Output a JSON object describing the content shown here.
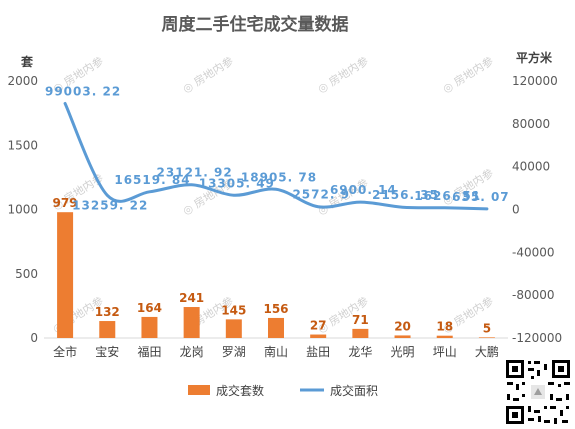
{
  "chart_data": {
    "type": "bar+line",
    "title": "周度二手住宅成交量数据",
    "left_axis_unit": "套",
    "right_axis_unit": "平方米",
    "categories": [
      "全市",
      "宝安",
      "福田",
      "龙岗",
      "罗湖",
      "南山",
      "盐田",
      "龙华",
      "光明",
      "坪山",
      "大鹏"
    ],
    "series": [
      {
        "name": "成交套数",
        "type": "bar",
        "axis": "left",
        "color": "#ed7d31",
        "values": [
          979,
          132,
          164,
          241,
          145,
          156,
          27,
          71,
          20,
          18,
          5
        ],
        "labels": [
          "979",
          "132",
          "164",
          "241",
          "145",
          "156",
          "27",
          "71",
          "20",
          "18",
          "5"
        ]
      },
      {
        "name": "成交面积",
        "type": "line",
        "axis": "right",
        "color": "#5b9bd5",
        "values": [
          99003.22,
          13259.22,
          16519.84,
          23121.92,
          13305.49,
          18905.78,
          2572.9,
          6900.14,
          2156.35,
          1626.51,
          635.07
        ],
        "labels": [
          "99003. 22",
          "13259. 22",
          "16519. 84",
          "23121. 92",
          "13305. 49",
          "18905. 78",
          "2572. 9",
          "6900. 14",
          "2156. 35",
          "1626. 51",
          "635. 07"
        ]
      }
    ],
    "left_ticks": [
      "0",
      "500",
      "1000",
      "1500",
      "2000"
    ],
    "right_ticks": [
      "-120000",
      "-80000",
      "-40000",
      "0",
      "40000",
      "80000",
      "120000"
    ],
    "ylim_left": [
      0,
      2000
    ],
    "ylim_right": [
      -120000,
      120000
    ],
    "legend_position": "bottom",
    "grid": false
  },
  "watermark": "房地内参"
}
